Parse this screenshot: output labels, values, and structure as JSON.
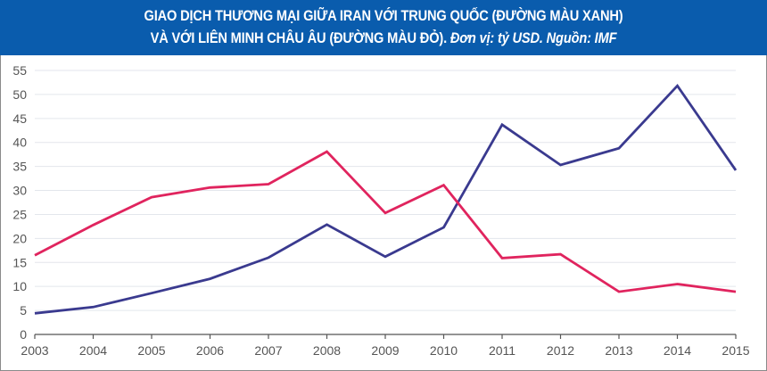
{
  "header": {
    "title_line1": "GIAO DỊCH THƯƠNG MẠI GIỮA IRAN VỚI TRUNG QUỐC (ĐƯỜNG MÀU XANH)",
    "title_line2_main": "VÀ VỚI LIÊN MINH CHÂU ÂU (ĐƯỜNG MÀU ĐỎ).",
    "title_line2_note": " Đơn vị: tỷ USD. Nguồn: IMF",
    "background_color": "#0a5cad"
  },
  "chart_data": {
    "type": "line",
    "title": "GIAO DỊCH THƯƠNG MẠI GIỮA IRAN VỚI TRUNG QUỐC (ĐƯỜNG MÀU XANH) VÀ VỚI LIÊN MINH CHÂU ÂU (ĐƯỜNG MÀU ĐỎ). Đơn vị: tỷ USD. Nguồn: IMF",
    "xlabel": "",
    "ylabel": "tỷ USD",
    "x": [
      2003,
      2004,
      2005,
      2006,
      2007,
      2008,
      2009,
      2010,
      2011,
      2012,
      2013,
      2014,
      2015
    ],
    "ylim": [
      0,
      55
    ],
    "yticks": [
      0,
      5,
      10,
      15,
      20,
      25,
      30,
      35,
      40,
      45,
      50,
      55
    ],
    "grid": true,
    "legend": "none (described in title)",
    "series": [
      {
        "name": "Trung Quốc (đường màu xanh)",
        "color": "#3a3a8f",
        "values": [
          4.4,
          5.7,
          8.6,
          11.6,
          16.0,
          22.9,
          16.2,
          22.3,
          43.7,
          35.3,
          38.8,
          51.8,
          34.2
        ]
      },
      {
        "name": "Liên minh Châu Âu (đường màu đỏ)",
        "color": "#e0245e",
        "values": [
          16.5,
          22.8,
          28.6,
          30.6,
          31.3,
          38.1,
          25.3,
          31.1,
          15.9,
          16.7,
          8.9,
          10.5,
          8.9
        ]
      }
    ]
  }
}
